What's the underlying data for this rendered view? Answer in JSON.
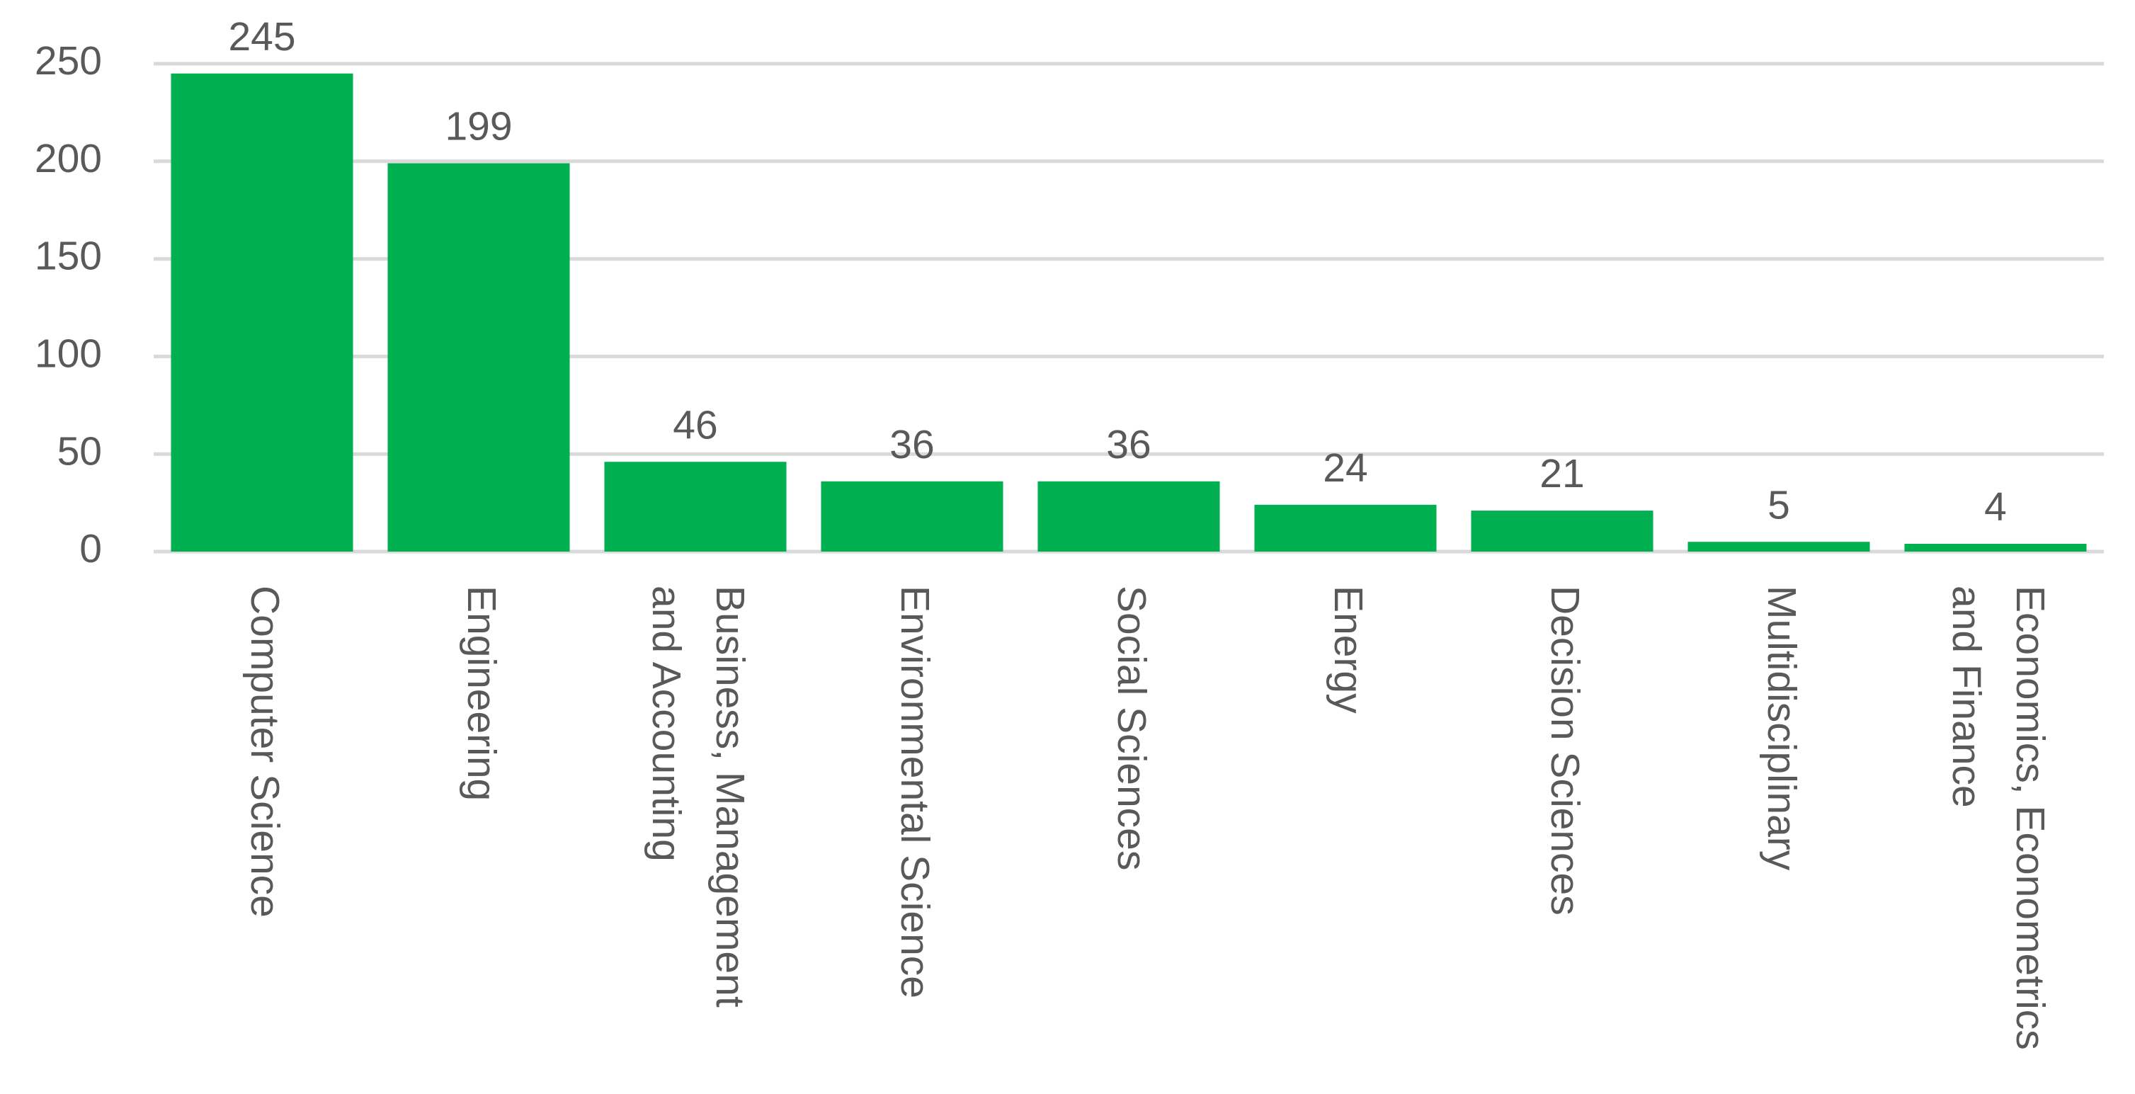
{
  "chart_data": {
    "type": "bar",
    "categories": [
      "Computer Science",
      "Engineering",
      "Business, Management and Accounting",
      "Environmental Science",
      "Social Sciences",
      "Energy",
      "Decision Sciences",
      "Multidisciplinary",
      "Economics, Econometrics and Finance"
    ],
    "values": [
      245,
      199,
      46,
      36,
      36,
      24,
      21,
      5,
      4
    ],
    "color": "#00b050",
    "ylim": [
      0,
      250
    ],
    "yticks": [
      0,
      50,
      100,
      150,
      200,
      250
    ],
    "grid": true
  }
}
